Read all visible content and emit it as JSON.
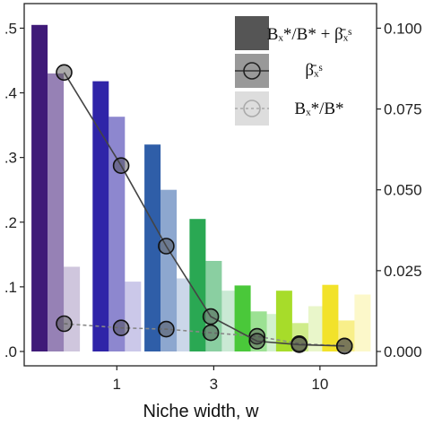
{
  "chart_data": {
    "type": "bar",
    "xlabel": "Niche width, w",
    "x_scale": "log",
    "x_ticks": [
      {
        "value": 1,
        "label": "1"
      },
      {
        "value": 3,
        "label": "3"
      },
      {
        "value": 10,
        "label": "10"
      }
    ],
    "y_left": {
      "range": [
        0,
        0.52
      ],
      "ticks": [
        {
          "value": 0.0,
          "label": ".0"
        },
        {
          "value": 0.1,
          "label": ".1"
        },
        {
          "value": 0.2,
          "label": ".2"
        },
        {
          "value": 0.3,
          "label": ".3"
        },
        {
          "value": 0.4,
          "label": ".4"
        },
        {
          "value": 0.5,
          "label": ".5"
        }
      ]
    },
    "y_right": {
      "range": [
        0,
        0.104
      ],
      "ticks": [
        {
          "value": 0.0,
          "label": "0.000"
        },
        {
          "value": 0.025,
          "label": "0.025"
        },
        {
          "value": 0.05,
          "label": "0.050"
        },
        {
          "value": 0.075,
          "label": "0.075"
        },
        {
          "value": 0.1,
          "label": "0.100"
        }
      ]
    },
    "grid": false,
    "legend_position": "top-right",
    "widths": [
      0.5,
      1.0,
      1.8,
      3.0,
      5.0,
      8.0,
      13.5
    ],
    "colors": [
      "#3f1a78",
      "#2f24a8",
      "#2f5ea8",
      "#2aa853",
      "#4ac83a",
      "#a7dc2a",
      "#f2e22a"
    ],
    "series": [
      {
        "legend_label": "Bₓ*/B* + β̄ₓˢ",
        "values": [
          0.505,
          0.418,
          0.32,
          0.205,
          0.102,
          0.094,
          0.103
        ]
      },
      {
        "legend_label": "β̄ₓˢ",
        "values": [
          0.43,
          0.363,
          0.25,
          0.14,
          0.062,
          0.044,
          0.048
        ]
      },
      {
        "legend_label": "Bₓ*/B*",
        "values": [
          0.131,
          0.108,
          0.113,
          0.094,
          0.058,
          0.07,
          0.088
        ]
      }
    ],
    "line_solid": {
      "axis": "right",
      "x": [
        0.55,
        1.05,
        1.75,
        2.9,
        4.9,
        7.9,
        13.2
      ],
      "y": [
        0.0863,
        0.0575,
        0.0326,
        0.0108,
        0.0032,
        0.0021,
        0.0017
      ]
    },
    "line_dashed": {
      "axis": "right",
      "x": [
        0.55,
        1.05,
        1.75,
        2.9,
        4.9,
        7.9,
        13.2
      ],
      "y": [
        0.0086,
        0.0073,
        0.0069,
        0.0058,
        0.0047,
        0.0024,
        0.0017
      ]
    }
  }
}
